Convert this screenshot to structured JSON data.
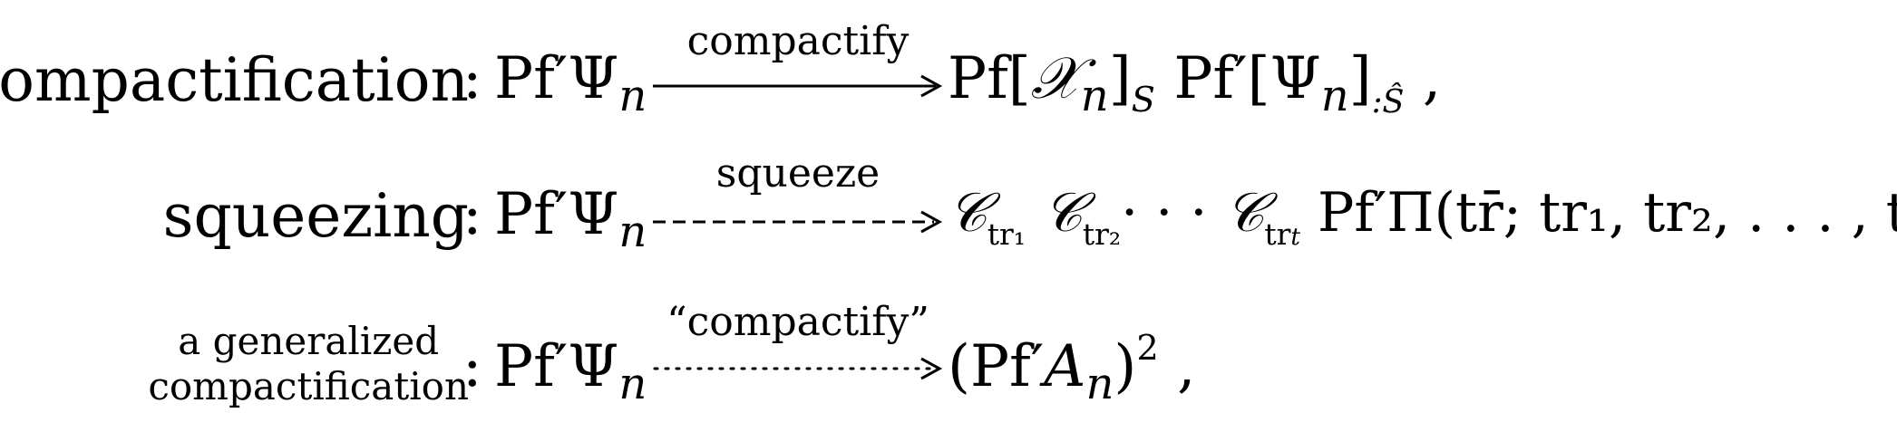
{
  "rows": [
    {
      "label": "compactification",
      "arrow_label": "compactify",
      "arrow_style": "solid"
    },
    {
      "label": "squeezing",
      "arrow_label": "squeeze",
      "arrow_style": "dashed"
    },
    {
      "label_line1": "a generalized",
      "label_line2": "compactification",
      "arrow_label": "“compactify”",
      "arrow_style": "dotted"
    }
  ],
  "symbols": {
    "colon": ":",
    "pf": "Pf",
    "prime": "′",
    "psi": "Ψ",
    "n": "n",
    "comma": ",",
    "pi": "Π",
    "A": "A",
    "X": "𝒳",
    "C": "𝒞",
    "S": "S",
    "S_hat": ":Ŝ",
    "tr1": "tr₁",
    "tr2": "tr₂",
    "trt_base": "tr",
    "t": "t",
    "tr_bar": "tr̄",
    "dots": "· · ·",
    "ellipsis": ". . .",
    "sq": "2"
  }
}
